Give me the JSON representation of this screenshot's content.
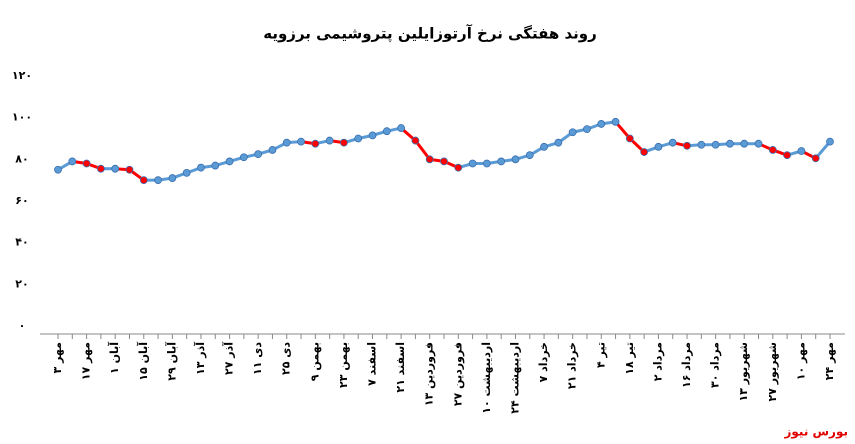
{
  "chart_data": {
    "type": "line",
    "title": "روند هفتگی نرخ آرتوزایلین پتروشیمی برزویه",
    "footer": "بورس نیوز",
    "categories": [
      "۳ مهر",
      null,
      "۱۷ مهر",
      null,
      "۱ آبان",
      null,
      "۱۵ آبان",
      null,
      "۲۹ آبان",
      null,
      "۱۳ آذر",
      null,
      "۲۷ آذر",
      null,
      "۱۱ دی",
      null,
      "۲۵ دی",
      null,
      "۹ بهمن",
      null,
      "۲۳ بهمن",
      null,
      "۷ اسفند",
      null,
      "۲۱ اسفند",
      null,
      "۱۳ فروردین",
      null,
      "۲۷ فروردین",
      null,
      "۱۰ اردیبهشت",
      null,
      "۲۴ اردیبهشت",
      null,
      "۷ خرداد",
      null,
      "۲۱ خرداد",
      null,
      "۴ تیر",
      null,
      "۱۸ تیر",
      null,
      "۲ مرداد",
      null,
      "۱۶ مرداد",
      null,
      "۳۰ مرداد",
      null,
      "۱۳ شهریور",
      null,
      "۲۷ شهریور",
      null,
      "۱۰ مهر",
      null,
      "۲۴ مهر"
    ],
    "series": [
      {
        "color": "#5b9bd5",
        "down_color": "#ff0000",
        "values": [
          75,
          79,
          78,
          75.5,
          75.5,
          75,
          70,
          70,
          71,
          73.5,
          76,
          77,
          79,
          81,
          82.5,
          84.5,
          88,
          88.5,
          87.5,
          89,
          88,
          90,
          91.5,
          93.5,
          95,
          89,
          80,
          79,
          76,
          78,
          78,
          79,
          80,
          82,
          86,
          88,
          93,
          94.5,
          97,
          98,
          90,
          83.5,
          86,
          88,
          86.5,
          87,
          87,
          87.5,
          87.5,
          87.5,
          84.5,
          82,
          84,
          80.5,
          88.5
        ]
      }
    ],
    "ylim": [
      0,
      120
    ],
    "yticks": [
      {
        "value": 0,
        "label": "۰"
      },
      {
        "value": 20,
        "label": "۲۰"
      },
      {
        "value": 40,
        "label": "۴۰"
      },
      {
        "value": 60,
        "label": "۶۰"
      },
      {
        "value": 80,
        "label": "۸۰"
      },
      {
        "value": 100,
        "label": "۱۰۰"
      },
      {
        "value": 120,
        "label": "۱۲۰"
      }
    ]
  }
}
